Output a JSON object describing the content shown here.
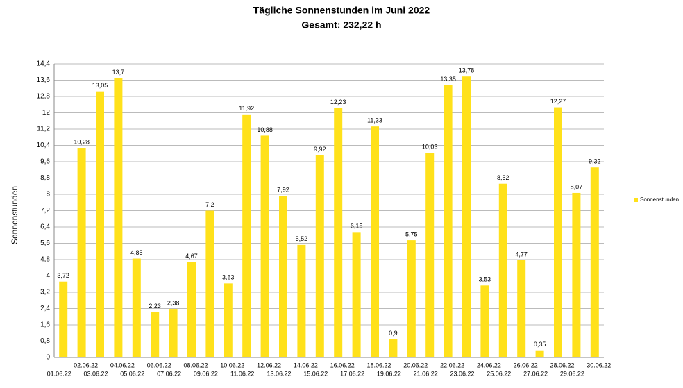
{
  "chart_data": {
    "type": "bar",
    "title": "Tägliche Sonnenstunden im Juni 2022",
    "subtitle": "Gesamt: 232,22 h",
    "y_label": "Sonnenstunden",
    "categories": [
      "01.06.22",
      "02.06.22",
      "03.06.22",
      "04.06.22",
      "05.06.22",
      "06.06.22",
      "07.06.22",
      "08.06.22",
      "09.06.22",
      "10.06.22",
      "11.06.22",
      "12.06.22",
      "13.06.22",
      "14.06.22",
      "15.06.22",
      "16.06.22",
      "17.06.22",
      "18.06.22",
      "19.06.22",
      "20.06.22",
      "21.06.22",
      "22.06.22",
      "23.06.22",
      "24.06.22",
      "25.06.22",
      "26.06.22",
      "27.06.22",
      "28.06.22",
      "29.06.22",
      "30.06.22"
    ],
    "series": [
      {
        "name": "Sonnenstunden",
        "color": "#ffe11a",
        "values": [
          3.72,
          10.28,
          13.05,
          13.7,
          4.85,
          2.23,
          2.38,
          4.67,
          7.2,
          3.63,
          11.92,
          10.88,
          7.92,
          5.52,
          9.92,
          12.23,
          6.15,
          11.33,
          0.9,
          5.75,
          10.03,
          13.35,
          13.78,
          3.53,
          8.52,
          4.77,
          0.35,
          12.27,
          8.07,
          9.32
        ],
        "value_labels": [
          "3,72",
          "10,28",
          "13,05",
          "13,7",
          "4,85",
          "2,23",
          "2,38",
          "4,67",
          "7,2",
          "3,63",
          "11,92",
          "10,88",
          "7,92",
          "5,52",
          "9,92",
          "12,23",
          "6,15",
          "11,33",
          "0,9",
          "5,75",
          "10,03",
          "13,35",
          "13,78",
          "3,53",
          "8,52",
          "4,77",
          "0,35",
          "12,27",
          "8,07",
          "9,32"
        ]
      }
    ],
    "ylim": [
      0,
      14.4
    ],
    "yticks": [
      0,
      {
        "value": 0.8,
        "label": "0,8"
      },
      {
        "value": 1.6,
        "label": "1,6"
      },
      {
        "value": 2.4,
        "label": "2,4"
      },
      {
        "value": 3.2,
        "label": "3,2"
      },
      4,
      {
        "value": 4.8,
        "label": "4,8"
      },
      {
        "value": 5.6,
        "label": "5,6"
      },
      {
        "value": 6.4,
        "label": "6,4"
      },
      {
        "value": 7.2,
        "label": "7,2"
      },
      8,
      {
        "value": 8.8,
        "label": "8,8"
      },
      {
        "value": 9.6,
        "label": "9,6"
      },
      {
        "value": 10.4,
        "label": "10,4"
      },
      {
        "value": 11.2,
        "label": "11,2"
      },
      12,
      {
        "value": 12.8,
        "label": "12,8"
      },
      {
        "value": 13.6,
        "label": "13,6"
      },
      {
        "value": 14.4,
        "label": "14,4"
      }
    ],
    "grid": true,
    "legend": "right"
  }
}
